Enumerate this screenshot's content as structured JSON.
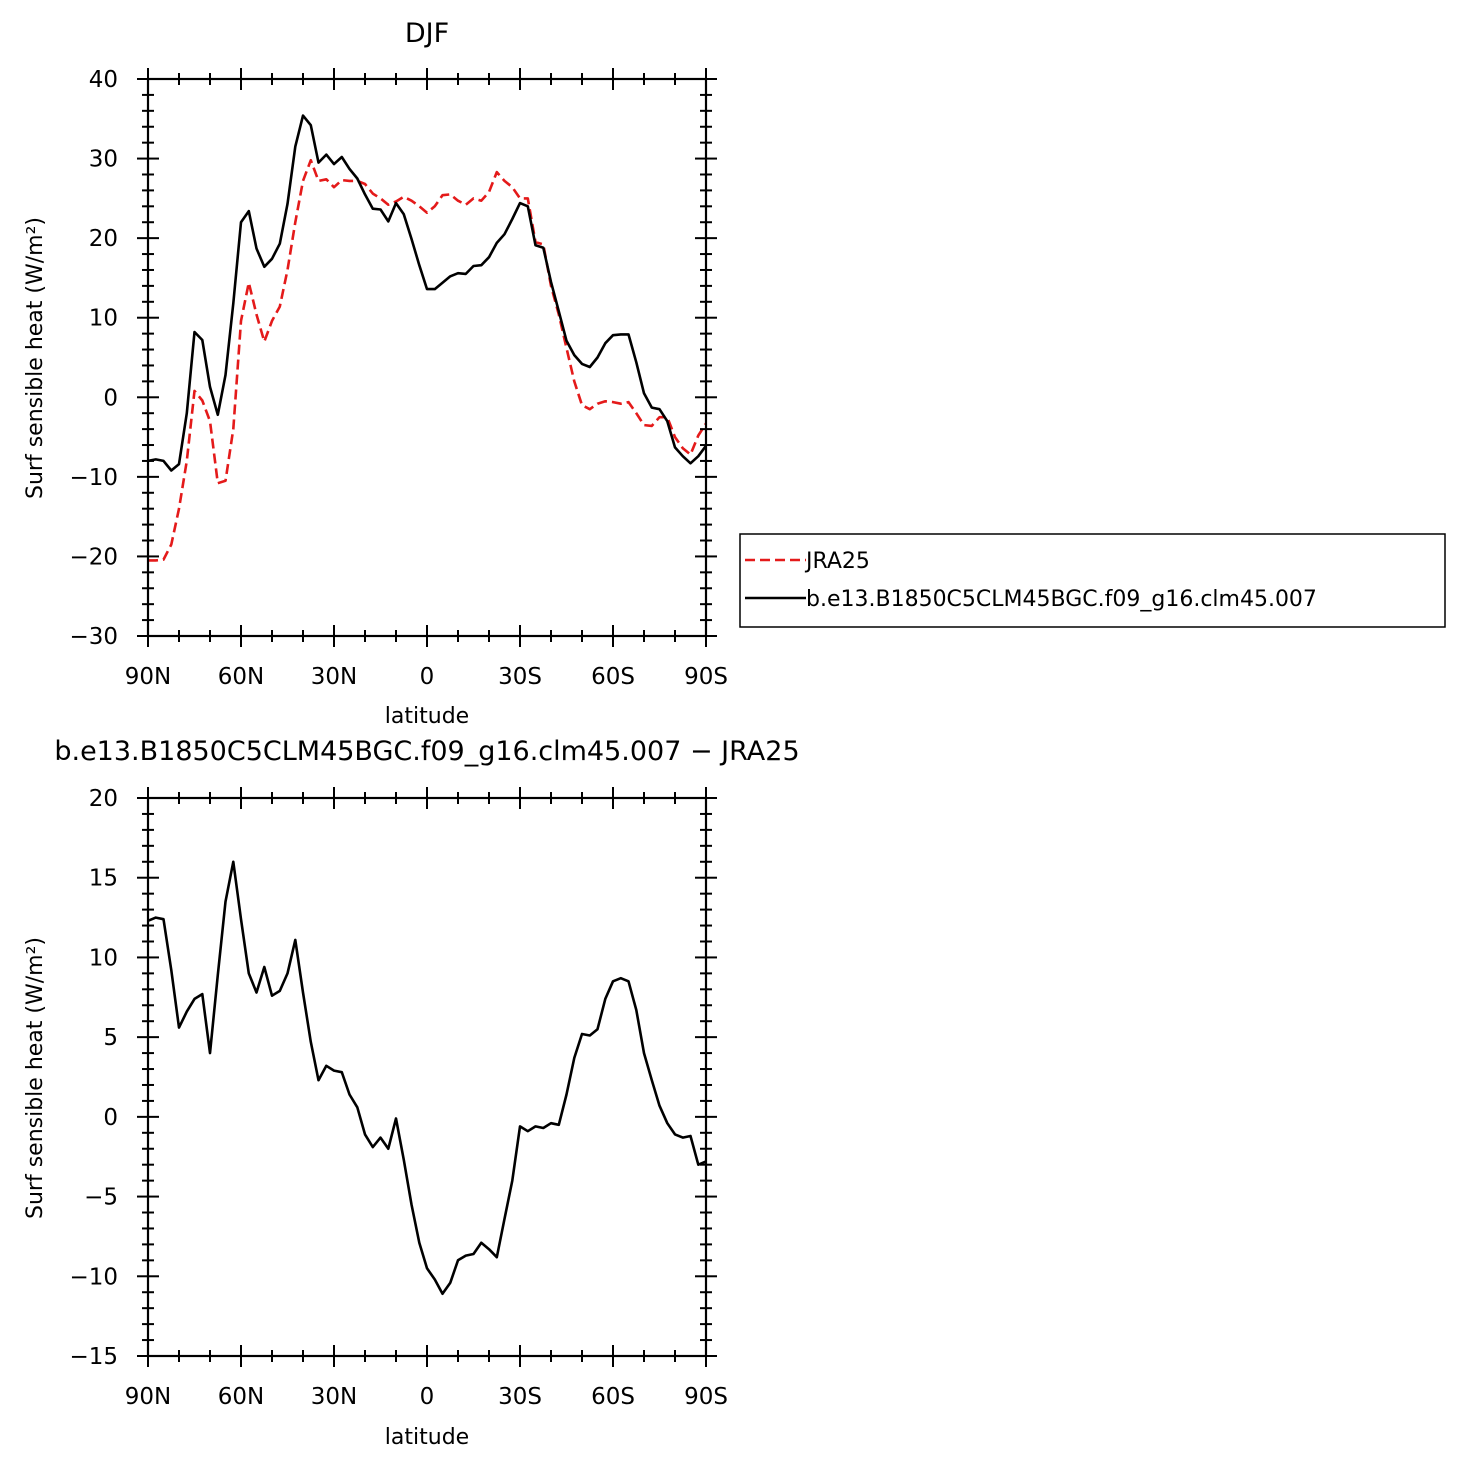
{
  "chart_data": [
    {
      "type": "line",
      "title": "DJF",
      "xlabel": "latitude",
      "ylabel": "Surf sensible heat (W/m²)",
      "xlim": [
        -90,
        90
      ],
      "ylim": [
        -30,
        40
      ],
      "xticks": [
        -90,
        -60,
        -30,
        0,
        30,
        60,
        90
      ],
      "xticklabels": [
        "90N",
        "60N",
        "30N",
        "0",
        "30S",
        "60S",
        "90S"
      ],
      "yticks": [
        -30,
        -20,
        -10,
        0,
        10,
        20,
        30,
        40
      ],
      "yticklabels": [
        "−30",
        "−20",
        "−10",
        "0",
        "10",
        "20",
        "30",
        "40"
      ],
      "legend_position": "right",
      "series": [
        {
          "name": "JRA25",
          "color": "#e41a1a",
          "dash": "dashed",
          "x": [
            -90,
            -87.5,
            -85,
            -82.5,
            -80,
            -77.5,
            -75,
            -72.5,
            -70,
            -67.5,
            -65,
            -62.5,
            -60,
            -57.5,
            -55,
            -52.5,
            -50,
            -47.5,
            -45,
            -42.5,
            -40,
            -37.5,
            -35,
            -32.5,
            -30,
            -27.5,
            -25,
            -22.5,
            -20,
            -17.5,
            -15,
            -12.5,
            -10,
            -7.5,
            -5,
            -2.5,
            0,
            2.5,
            5,
            7.5,
            10,
            12.5,
            15,
            17.5,
            20,
            22.5,
            25,
            27.5,
            30,
            32.5,
            35,
            37.5,
            40,
            42.5,
            45,
            47.5,
            50,
            52.5,
            55,
            57.5,
            60,
            62.5,
            65,
            67.5,
            70,
            72.5,
            75,
            77.5,
            80,
            82.5,
            85,
            87.5,
            90
          ],
          "values": [
            -20.5,
            -20.5,
            -20.4,
            -18.5,
            -14,
            -8,
            0.8,
            -0.4,
            -3,
            -10.8,
            -10.5,
            -4,
            9.6,
            14.4,
            10.4,
            7,
            9.6,
            11.4,
            16,
            22,
            27.2,
            29.8,
            27.2,
            27.4,
            26.4,
            27.3,
            27.2,
            27.2,
            26.8,
            25.6,
            25,
            24.2,
            24.6,
            25.2,
            24.7,
            24,
            23.2,
            24,
            25.4,
            25.5,
            24.7,
            24.2,
            25,
            24.7,
            25.8,
            28.3,
            27.2,
            26.4,
            25,
            25,
            19.5,
            19.2,
            14,
            10.4,
            6.2,
            2,
            -1,
            -1.5,
            -0.8,
            -0.5,
            -0.6,
            -0.8,
            -0.6,
            -2,
            -3.5,
            -3.6,
            -2.5,
            -2.5,
            -5,
            -6.4,
            -7.2,
            -4.8,
            -3.3
          ]
        },
        {
          "name": "b.e13.B1850C5CLM45BGC.f09_g16.clm45.007",
          "color": "#000000",
          "dash": "solid",
          "x": [
            -90,
            -87.5,
            -85,
            -82.5,
            -80,
            -77.5,
            -75,
            -72.5,
            -70,
            -67.5,
            -65,
            -62.5,
            -60,
            -57.5,
            -55,
            -52.5,
            -50,
            -47.5,
            -45,
            -42.5,
            -40,
            -37.5,
            -35,
            -32.5,
            -30,
            -27.5,
            -25,
            -22.5,
            -20,
            -17.5,
            -15,
            -12.5,
            -10,
            -7.5,
            -5,
            -2.5,
            0,
            2.5,
            5,
            7.5,
            10,
            12.5,
            15,
            17.5,
            20,
            22.5,
            25,
            27.5,
            30,
            32.5,
            35,
            37.5,
            40,
            42.5,
            45,
            47.5,
            50,
            52.5,
            55,
            57.5,
            60,
            62.5,
            65,
            67.5,
            70,
            72.5,
            75,
            77.5,
            80,
            82.5,
            85,
            87.5,
            90
          ],
          "values": [
            -8,
            -7.8,
            -8,
            -9.2,
            -8.4,
            -2,
            8.2,
            7.2,
            1.3,
            -2.2,
            2.8,
            11.8,
            22,
            23.4,
            18.7,
            16.4,
            17.4,
            19.3,
            24.3,
            31.5,
            35.4,
            34.2,
            29.5,
            30.5,
            29.3,
            30.2,
            28.7,
            27.5,
            25.5,
            23.7,
            23.6,
            22.1,
            24.4,
            23,
            19.9,
            16.6,
            13.6,
            13.6,
            14.4,
            15.2,
            15.6,
            15.5,
            16.5,
            16.6,
            17.6,
            19.4,
            20.5,
            22.4,
            24.4,
            24,
            19.1,
            18.8,
            14.5,
            10.8,
            7.1,
            5.3,
            4.2,
            3.8,
            5,
            6.8,
            7.8,
            7.9,
            7.9,
            4.4,
            0.5,
            -1.3,
            -1.5,
            -3,
            -6.3,
            -7.4,
            -8.3,
            -7.4,
            -6.1
          ]
        }
      ]
    },
    {
      "type": "line",
      "title": "b.e13.B1850C5CLM45BGC.f09_g16.clm45.007 − JRA25",
      "xlabel": "latitude",
      "ylabel": "Surf sensible heat (W/m²)",
      "xlim": [
        -90,
        90
      ],
      "ylim": [
        -15,
        20
      ],
      "xticks": [
        -90,
        -60,
        -30,
        0,
        30,
        60,
        90
      ],
      "xticklabels": [
        "90N",
        "60N",
        "30N",
        "0",
        "30S",
        "60S",
        "90S"
      ],
      "yticks": [
        -15,
        -10,
        -5,
        0,
        5,
        10,
        15,
        20
      ],
      "yticklabels": [
        "−15",
        "−10",
        "−5",
        "0",
        "5",
        "10",
        "15",
        "20"
      ],
      "series": [
        {
          "color": "#000000",
          "dash": "solid",
          "x": [
            -90,
            -87.5,
            -85,
            -82.5,
            -80,
            -77.5,
            -75,
            -72.5,
            -70,
            -67.5,
            -65,
            -62.5,
            -60,
            -57.5,
            -55,
            -52.5,
            -50,
            -47.5,
            -45,
            -42.5,
            -40,
            -37.5,
            -35,
            -32.5,
            -30,
            -27.5,
            -25,
            -22.5,
            -20,
            -17.5,
            -15,
            -12.5,
            -10,
            -7.5,
            -5,
            -2.5,
            0,
            2.5,
            5,
            7.5,
            10,
            12.5,
            15,
            17.5,
            20,
            22.5,
            25,
            27.5,
            30,
            32.5,
            35,
            37.5,
            40,
            42.5,
            45,
            47.5,
            50,
            52.5,
            55,
            57.5,
            60,
            62.5,
            65,
            67.5,
            70,
            72.5,
            75,
            77.5,
            80,
            82.5,
            85,
            87.5,
            90
          ],
          "values": [
            12.3,
            12.5,
            12.4,
            9.2,
            5.6,
            6.6,
            7.4,
            7.7,
            4,
            8.9,
            13.5,
            16,
            12.4,
            9,
            7.8,
            9.4,
            7.6,
            7.9,
            9,
            11.1,
            7.8,
            4.7,
            2.3,
            3.2,
            2.9,
            2.8,
            1.4,
            0.6,
            -1.1,
            -1.9,
            -1.3,
            -2,
            -0.1,
            -2.7,
            -5.5,
            -7.9,
            -9.5,
            -10.2,
            -11.1,
            -10.4,
            -9,
            -8.7,
            -8.6,
            -7.9,
            -8.3,
            -8.8,
            -6.4,
            -4,
            -0.6,
            -0.9,
            -0.6,
            -0.7,
            -0.4,
            -0.5,
            1.4,
            3.7,
            5.2,
            5.1,
            5.5,
            7.4,
            8.5,
            8.7,
            8.5,
            6.7,
            4,
            2.3,
            0.7,
            -0.4,
            -1.1,
            -1.3,
            -1.2,
            -3,
            -2.8
          ]
        }
      ]
    }
  ]
}
